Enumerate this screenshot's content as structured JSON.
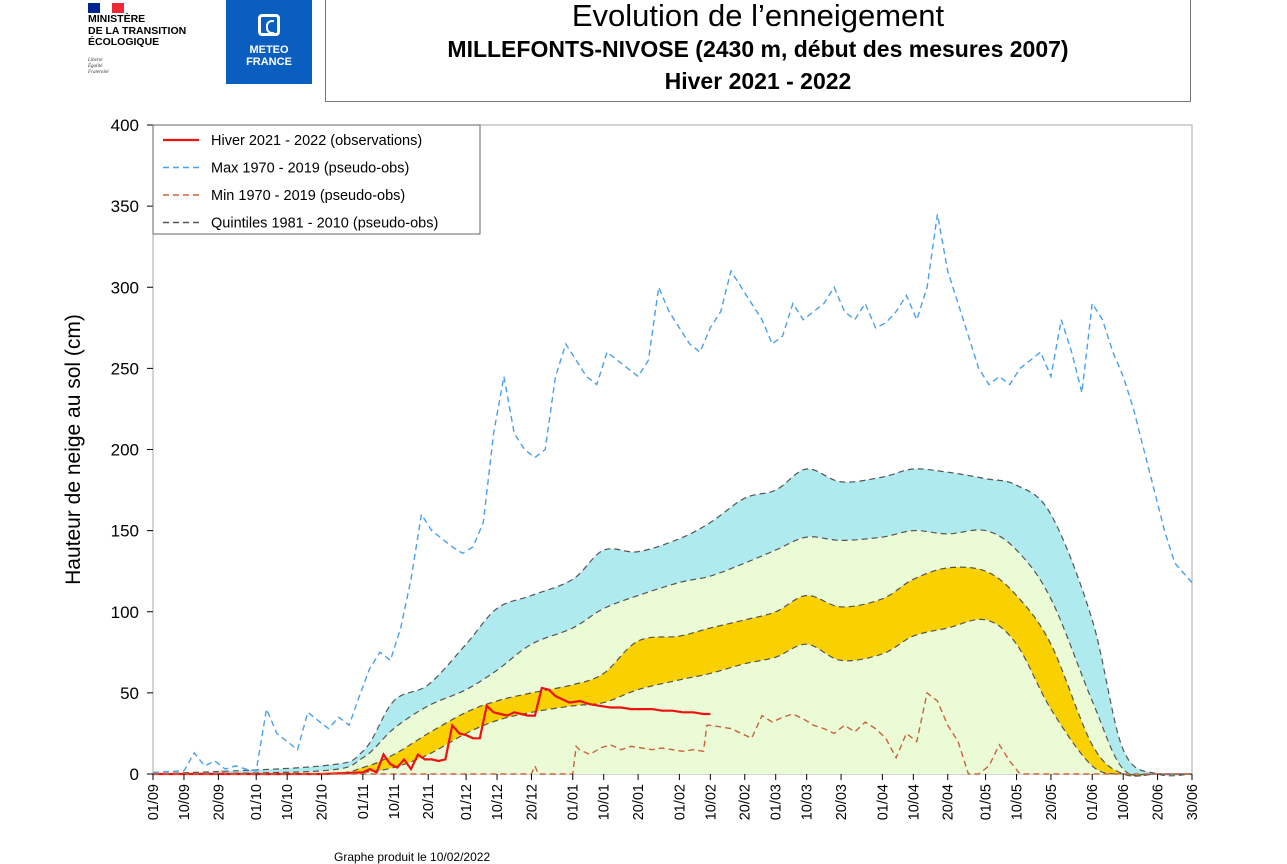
{
  "header": {
    "ministry": "MINISTÈRE\nDE LA TRANSITION\nÉCOLOGIQUE",
    "motto": "Liberté\nÉgalité\nFraternité",
    "meteo_logo": "METEO\nFRANCE",
    "flag_colors": [
      "#002395",
      "#ffffff",
      "#ed2939"
    ],
    "logo_color": "#0a5ebf"
  },
  "footer": "Graphe produit le 10/02/2022",
  "chart_data": {
    "type": "line",
    "title": "Evolution de l’enneigement",
    "subtitle": "MILLEFONTS-NIVOSE (2430 m, début des mesures 2007)",
    "subtitle2": "Hiver 2021 - 2022",
    "ylabel": "Hauteur de neige au sol (cm)",
    "xlabel": "",
    "ylim": [
      0,
      400
    ],
    "yticks": [
      0,
      50,
      100,
      150,
      200,
      250,
      300,
      350,
      400
    ],
    "xticks": [
      "01/09",
      "10/09",
      "20/09",
      "01/10",
      "10/10",
      "20/10",
      "01/11",
      "10/11",
      "20/11",
      "01/12",
      "10/12",
      "20/12",
      "01/01",
      "10/01",
      "20/01",
      "01/02",
      "10/02",
      "20/02",
      "01/03",
      "10/03",
      "20/03",
      "01/04",
      "10/04",
      "20/04",
      "01/05",
      "10/05",
      "20/05",
      "01/06",
      "10/06",
      "20/06",
      "30/06"
    ],
    "legend_position": "top-left",
    "grid": false,
    "band_colors": {
      "outer": "#aeeaee",
      "middle": "#eafbd5",
      "inner": "#f9d100"
    },
    "x_note": "x values are dates (dd/mm) from 01/09/2021 to 30/06/2022",
    "quintiles": {
      "x": [
        "01/09",
        "20/10",
        "01/11",
        "10/11",
        "20/11",
        "01/12",
        "10/12",
        "20/12",
        "01/01",
        "10/01",
        "20/01",
        "01/02",
        "10/02",
        "20/02",
        "01/03",
        "10/03",
        "20/03",
        "01/04",
        "10/04",
        "20/04",
        "01/05",
        "10/05",
        "20/05",
        "01/06",
        "10/06",
        "20/06",
        "30/06"
      ],
      "q80": [
        0,
        5,
        14,
        45,
        55,
        80,
        102,
        110,
        120,
        138,
        137,
        145,
        155,
        170,
        175,
        188,
        180,
        183,
        188,
        186,
        182,
        178,
        160,
        95,
        15,
        0,
        0
      ],
      "q60": [
        0,
        2,
        10,
        28,
        42,
        52,
        64,
        80,
        90,
        102,
        110,
        118,
        122,
        130,
        138,
        146,
        144,
        146,
        150,
        148,
        150,
        138,
        108,
        45,
        3,
        0,
        0
      ],
      "q40": [
        0,
        0,
        4,
        12,
        25,
        38,
        45,
        50,
        55,
        62,
        82,
        85,
        90,
        95,
        100,
        110,
        103,
        108,
        120,
        127,
        125,
        110,
        80,
        18,
        0,
        0,
        0
      ],
      "q20": [
        0,
        0,
        1,
        4,
        12,
        25,
        33,
        38,
        42,
        44,
        52,
        58,
        62,
        68,
        72,
        80,
        70,
        74,
        85,
        90,
        95,
        80,
        40,
        5,
        0,
        0,
        0
      ]
    },
    "series": [
      {
        "name": "Hiver 2021 - 2022 (observations)",
        "color": "#ee1111",
        "style": "solid",
        "x": [
          "01/09",
          "20/10",
          "01/11",
          "03/11",
          "05/11",
          "07/11",
          "09/11",
          "11/11",
          "13/11",
          "15/11",
          "17/11",
          "19/11",
          "21/11",
          "23/11",
          "25/11",
          "27/11",
          "29/11",
          "01/12",
          "03/12",
          "05/12",
          "07/12",
          "09/12",
          "11/12",
          "13/12",
          "15/12",
          "17/12",
          "19/12",
          "21/12",
          "23/12",
          "25/12",
          "27/12",
          "29/12",
          "31/12",
          "03/01",
          "06/01",
          "09/01",
          "12/01",
          "15/01",
          "18/01",
          "21/01",
          "24/01",
          "27/01",
          "30/01",
          "02/02",
          "05/02",
          "08/02",
          "10/02"
        ],
        "y": [
          0,
          0,
          1,
          3,
          1,
          12,
          6,
          4,
          9,
          3,
          12,
          9,
          9,
          8,
          9,
          30,
          25,
          24,
          22,
          22,
          42,
          38,
          37,
          36,
          38,
          37,
          36,
          36,
          53,
          52,
          48,
          46,
          44,
          45,
          43,
          42,
          41,
          41,
          40,
          40,
          40,
          39,
          39,
          38,
          38,
          37,
          37
        ]
      },
      {
        "name": "Max 1970 - 2019 (pseudo-obs)",
        "color": "#4aa0ee",
        "style": "dashed",
        "x": [
          "01/09",
          "10/09",
          "13/09",
          "16/09",
          "19/09",
          "22/09",
          "25/09",
          "28/09",
          "01/10",
          "04/10",
          "07/10",
          "10/10",
          "13/10",
          "16/10",
          "19/10",
          "22/10",
          "25/10",
          "28/10",
          "31/10",
          "03/11",
          "06/11",
          "09/11",
          "12/11",
          "15/11",
          "18/11",
          "21/11",
          "24/11",
          "27/11",
          "30/11",
          "03/12",
          "06/12",
          "09/12",
          "12/12",
          "15/12",
          "18/12",
          "21/12",
          "24/12",
          "27/12",
          "30/12",
          "02/01",
          "05/01",
          "08/01",
          "11/01",
          "14/01",
          "17/01",
          "20/01",
          "23/01",
          "26/01",
          "29/01",
          "01/02",
          "04/02",
          "07/02",
          "10/02",
          "13/02",
          "16/02",
          "19/02",
          "22/02",
          "25/02",
          "28/02",
          "03/03",
          "06/03",
          "09/03",
          "12/03",
          "15/03",
          "18/03",
          "21/03",
          "24/03",
          "27/03",
          "30/03",
          "02/04",
          "05/04",
          "08/04",
          "11/04",
          "14/04",
          "17/04",
          "20/04",
          "23/04",
          "26/04",
          "29/04",
          "02/05",
          "05/05",
          "08/05",
          "11/05",
          "14/05",
          "17/05",
          "20/05",
          "23/05",
          "26/05",
          "29/05",
          "01/06",
          "04/06",
          "07/06",
          "10/06",
          "13/06",
          "16/06",
          "19/06",
          "22/06",
          "25/06",
          "30/06"
        ],
        "y": [
          1,
          2,
          13,
          5,
          8,
          3,
          5,
          3,
          2,
          40,
          25,
          20,
          15,
          38,
          33,
          28,
          35,
          30,
          48,
          65,
          75,
          70,
          90,
          120,
          160,
          150,
          145,
          140,
          136,
          140,
          155,
          210,
          245,
          210,
          200,
          195,
          200,
          245,
          265,
          255,
          245,
          240,
          260,
          255,
          250,
          245,
          255,
          300,
          285,
          275,
          265,
          260,
          275,
          285,
          310,
          300,
          290,
          280,
          265,
          270,
          290,
          280,
          285,
          290,
          300,
          285,
          280,
          290,
          275,
          278,
          285,
          295,
          280,
          300,
          345,
          310,
          290,
          270,
          250,
          240,
          245,
          240,
          250,
          255,
          260,
          245,
          280,
          260,
          235,
          290,
          280,
          260,
          245,
          225,
          200,
          175,
          150,
          130,
          118
        ]
      },
      {
        "name": "Min 1970 - 2019 (pseudo-obs)",
        "color": "#c8643c",
        "style": "dashed",
        "x": [
          "01/09",
          "20/09",
          "21/09",
          "22/09",
          "20/12",
          "21/12",
          "22/12",
          "01/01",
          "02/01",
          "03/01",
          "06/01",
          "09/01",
          "12/01",
          "15/01",
          "18/01",
          "21/01",
          "24/01",
          "27/01",
          "30/01",
          "02/02",
          "05/02",
          "08/02",
          "09/02",
          "10/02",
          "13/02",
          "16/02",
          "19/02",
          "22/02",
          "25/02",
          "28/02",
          "03/03",
          "06/03",
          "09/03",
          "12/03",
          "15/03",
          "18/03",
          "21/03",
          "24/03",
          "27/03",
          "30/03",
          "02/04",
          "05/04",
          "08/04",
          "11/04",
          "14/04",
          "17/04",
          "20/04",
          "23/04",
          "26/04",
          "29/04",
          "02/05",
          "05/05",
          "08/05",
          "11/05",
          "14/05",
          "30/06"
        ],
        "y": [
          0,
          0,
          2,
          0,
          0,
          5,
          0,
          0,
          17,
          15,
          12,
          16,
          18,
          15,
          17,
          16,
          15,
          16,
          15,
          14,
          15,
          14,
          30,
          30,
          29,
          28,
          25,
          22,
          36,
          32,
          35,
          37,
          34,
          30,
          28,
          25,
          30,
          26,
          32,
          28,
          22,
          10,
          25,
          20,
          50,
          45,
          30,
          20,
          0,
          0,
          5,
          18,
          8,
          0,
          0,
          0
        ]
      },
      {
        "name": "Quintiles 1981 - 2010 (pseudo-obs)",
        "color": "#555555",
        "style": "dashed",
        "x": [],
        "y": []
      }
    ]
  }
}
